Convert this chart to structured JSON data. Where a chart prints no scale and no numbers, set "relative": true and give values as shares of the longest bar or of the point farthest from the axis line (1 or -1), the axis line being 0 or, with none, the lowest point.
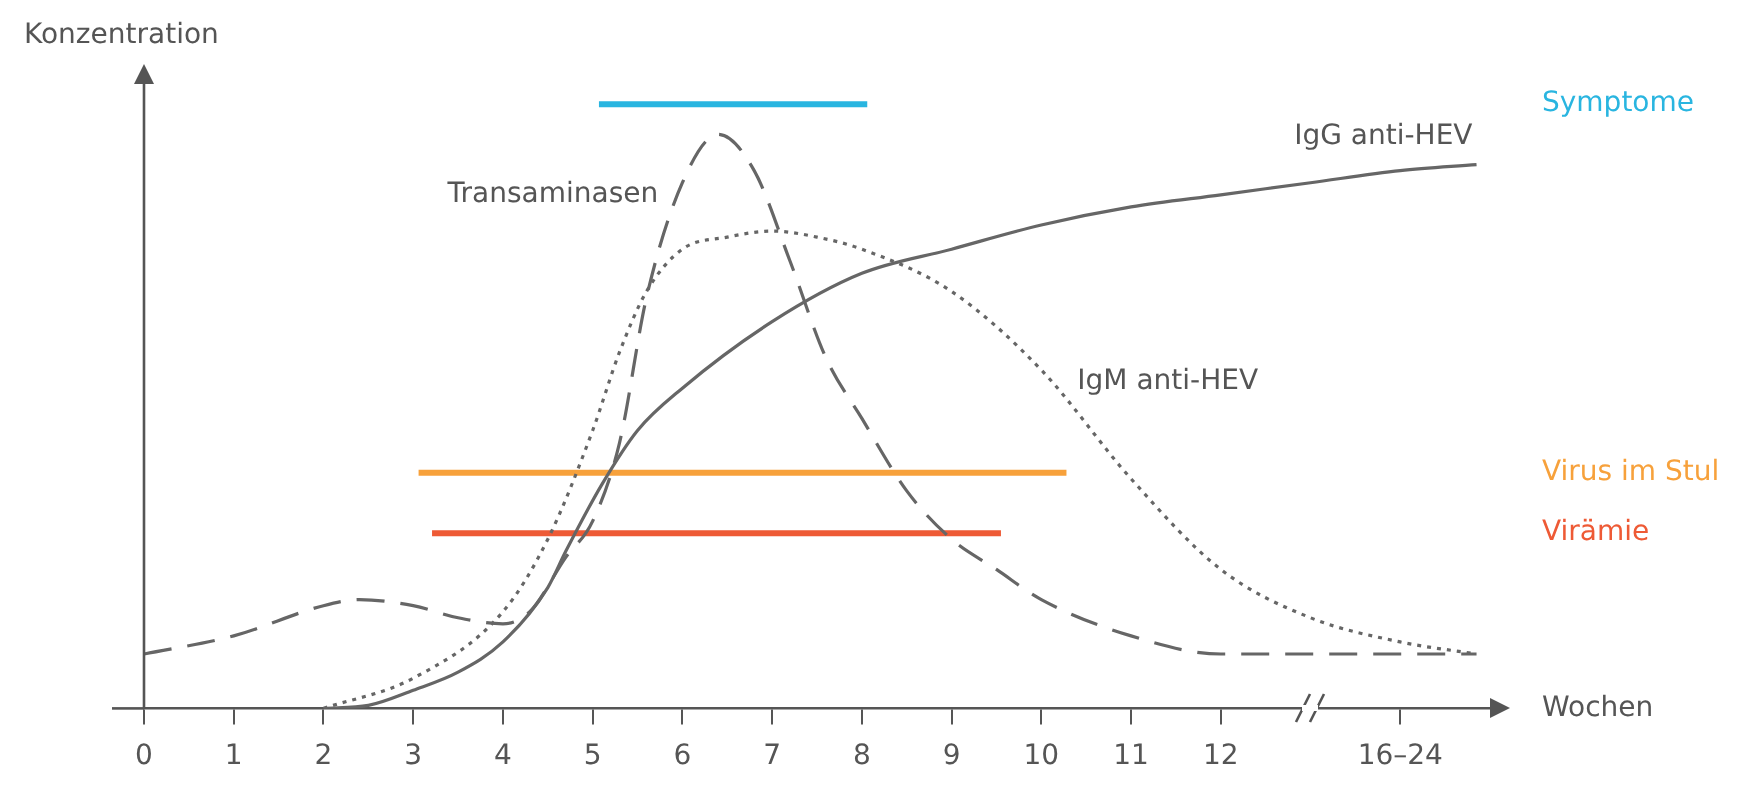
{
  "chart_data": {
    "type": "line",
    "relative": true,
    "xlabel": "Wochen",
    "ylabel": "Konzentration",
    "legend": false,
    "grid": false,
    "marker": "none",
    "xlim": [
      0,
      15
    ],
    "xticks": [
      0,
      1,
      2,
      3,
      4,
      5,
      6,
      7,
      8,
      9,
      10,
      11,
      12,
      {
        "value": 14,
        "label": "16–24"
      }
    ],
    "series": [
      {
        "name": "Symptome",
        "color": "#29b5e0",
        "line_style": "solid",
        "x": [
          5.07,
          8.06
        ],
        "values": [
          1,
          1
        ]
      },
      {
        "name": "IgG anti-HEV",
        "color": "#666666",
        "line_style": "solid",
        "x": [
          2,
          2.5,
          3,
          3.5,
          4,
          4.5,
          4.7,
          5.1,
          5.5,
          6,
          7,
          8,
          9,
          10,
          11,
          12,
          13,
          14,
          14.85
        ],
        "values": [
          0,
          0.005,
          0.03,
          0.06,
          0.11,
          0.2,
          0.26,
          0.37,
          0.46,
          0.53,
          0.64,
          0.72,
          0.76,
          0.8,
          0.83,
          0.85,
          0.87,
          0.89,
          0.9
        ]
      },
      {
        "name": "Transaminasen",
        "color": "#666666",
        "line_style": "dashed",
        "x": [
          0,
          1,
          2,
          2.4,
          3,
          3.5,
          4,
          4.3,
          4.7,
          5,
          5.3,
          5.6,
          6,
          6.4,
          6.8,
          7.2,
          7.6,
          8,
          8.5,
          9,
          9.5,
          10,
          11,
          12,
          13,
          14.85
        ],
        "values": [
          0.09,
          0.12,
          0.17,
          0.18,
          0.17,
          0.15,
          0.14,
          0.16,
          0.25,
          0.31,
          0.44,
          0.68,
          0.87,
          0.95,
          0.89,
          0.74,
          0.58,
          0.48,
          0.36,
          0.28,
          0.23,
          0.18,
          0.12,
          0.09,
          0.09,
          0.09
        ]
      },
      {
        "name": "IgM anti-HEV",
        "color": "#666666",
        "line_style": "dotted",
        "x": [
          2,
          3,
          4,
          4.5,
          5,
          5.3,
          5.6,
          6,
          6.5,
          7,
          7.5,
          8,
          9,
          10,
          11,
          12,
          13,
          14,
          14.85
        ],
        "values": [
          0,
          0.05,
          0.16,
          0.28,
          0.46,
          0.59,
          0.69,
          0.76,
          0.78,
          0.79,
          0.78,
          0.76,
          0.69,
          0.56,
          0.38,
          0.23,
          0.15,
          0.11,
          0.09
        ]
      },
      {
        "name": "Virus im Stul",
        "color": "#f7a13b",
        "line_style": "solid",
        "x": [
          3.06,
          10.28
        ],
        "values": [
          0.39,
          0.39
        ]
      },
      {
        "name": "Virämie",
        "color": "#ee5a35",
        "line_style": "solid",
        "x": [
          3.21,
          9.55
        ],
        "values": [
          0.29,
          0.29
        ]
      }
    ]
  }
}
